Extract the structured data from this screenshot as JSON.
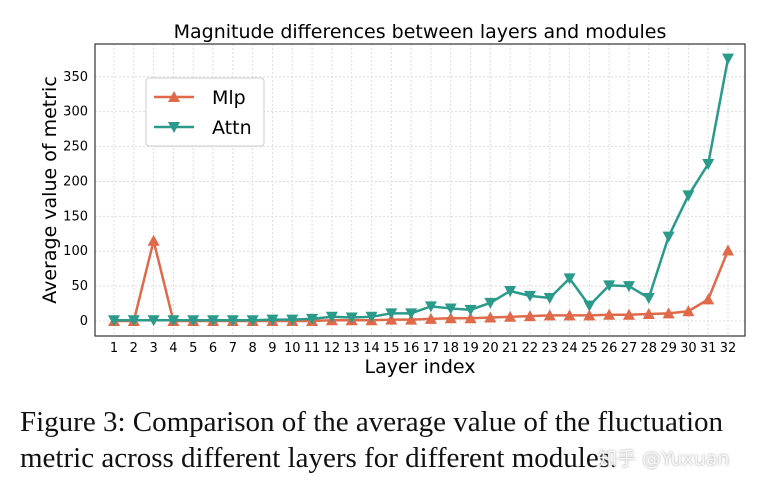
{
  "chart_data": {
    "type": "line",
    "title": "Magnitude differences between layers and modules",
    "xlabel": "Layer index",
    "ylabel": "Average value of metric",
    "categories": [
      1,
      2,
      3,
      4,
      5,
      6,
      7,
      8,
      9,
      10,
      11,
      12,
      13,
      14,
      15,
      16,
      17,
      18,
      19,
      20,
      21,
      22,
      23,
      24,
      25,
      26,
      27,
      28,
      29,
      30,
      31,
      32
    ],
    "yticks": [
      0,
      50,
      100,
      150,
      200,
      250,
      300,
      350
    ],
    "ylim": [
      -21.5,
      397
    ],
    "grid": true,
    "legend_position": "top-left",
    "series": [
      {
        "name": "Mlp",
        "color": "#e0694a",
        "marker": "triangle-up",
        "values": [
          0,
          0,
          115,
          0,
          0,
          0,
          0,
          0,
          0,
          0,
          0,
          1,
          1,
          1,
          2,
          2,
          3,
          4,
          4,
          5,
          6,
          7,
          8,
          8,
          8,
          9,
          9,
          10,
          11,
          14,
          31,
          101
        ]
      },
      {
        "name": "Attn",
        "color": "#2a9a8a",
        "marker": "triangle-down",
        "values": [
          1,
          1,
          1,
          1,
          1,
          1,
          1,
          1,
          2,
          2,
          3,
          6,
          5,
          6,
          11,
          11,
          21,
          18,
          16,
          26,
          43,
          36,
          33,
          61,
          22,
          51,
          50,
          33,
          121,
          180,
          225,
          376
        ]
      }
    ]
  },
  "caption": "Figure 3: Comparison of the average value of the fluctuation metric across different layers for different modules.",
  "watermark": "知乎 @Yuxuan"
}
